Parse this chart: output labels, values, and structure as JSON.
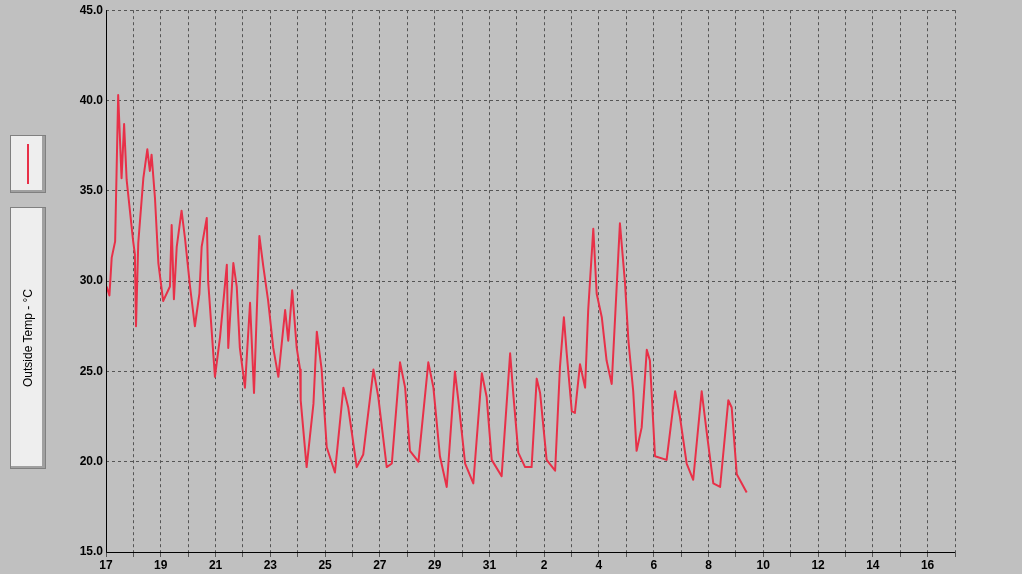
{
  "chart_data": {
    "type": "line",
    "x": [
      "--01-17T00:30",
      "--01-17T03:00",
      "--01-17T05:00",
      "--01-17T08:00",
      "--01-17T10:40",
      "--01-17T13:38",
      "--01-17T15:52",
      "--01-17T18:06",
      "--01-17T23:49",
      "--01-18T01:18",
      "--01-18T02:17",
      "--01-18T04:16",
      "--01-18T08:44",
      "--01-18T12:13",
      "--01-18T14:26",
      "--01-18T15:56",
      "--01-18T18:55",
      "--01-18T21:53",
      "--01-19T02:05",
      "--01-19T08:02",
      "--01-19T09:32",
      "--01-19T11:31",
      "--01-19T13:59",
      "--01-19T18:13",
      "--01-19T21:11",
      "--01-20T01:39",
      "--01-20T05:53",
      "--01-20T09:50",
      "--01-20T11:50",
      "--01-20T16:18",
      "--01-20T17:31",
      "--01-20T23:28",
      "--01-21T03:56",
      "--01-21T09:53",
      "--01-21T11:08",
      "--01-21T15:36",
      "--01-21T18:34",
      "--01-21T21:18",
      "--01-22T01:46",
      "--01-22T06:14",
      "--01-22T09:42",
      "--01-22T14:24",
      "--01-22T17:53",
      "--01-22T22:06",
      "--01-23T02:34",
      "--01-23T07:02",
      "--01-23T12:59",
      "--01-23T15:42",
      "--01-23T19:10",
      "--01-23T23:08",
      "--01-24T02:07",
      "--01-24T02:37",
      "--01-24T07:49",
      "--01-24T13:47",
      "--01-24T16:45",
      "--01-24T20:59",
      "--01-25T01:26",
      "--01-25T08:37",
      "--01-25T16:03",
      "--01-25T20:17",
      "--01-26T03:43",
      "--01-26T09:26",
      "--01-26T18:22",
      "--01-26T22:34",
      "--01-27T06:00",
      "--01-27T10:28",
      "--01-27T17:40",
      "--01-27T22:08",
      "--01-28T02:21",
      "--01-28T09:48",
      "--01-28T18:27",
      "--01-28T22:55",
      "--01-29T04:38",
      "--01-29T10:35",
      "--01-29T17:47",
      "--01-29T20:46",
      "--01-30T02:43",
      "--01-30T09:53",
      "--01-30T17:20",
      "--01-30T21:33",
      "--01-31T02:01",
      "--01-31T10:42",
      "--01-31T18:09",
      "--01-31T21:07",
      "--02-01T01:19",
      "--02-01T07:16",
      "--02-01T12:59",
      "--02-01T17:27",
      "--02-01T20:25",
      "--02-02T02:08",
      "--02-02T09:35",
      "--02-02T13:47",
      "--02-02T17:15",
      "--02-02T19:44",
      "--02-03T00:11",
      "--02-03T02:55",
      "--02-03T07:23",
      "--02-03T11:51",
      "--02-03T14:34",
      "--02-03T19:02",
      "--02-03T22:00",
      "--02-04T02:28",
      "--02-04T06:41",
      "--02-04T11:10",
      "--02-04T18:22",
      "--02-04T22:49",
      "--02-05T01:48",
      "--02-05T06:01",
      "--02-05T08:59",
      "--02-05T13:26",
      "--02-05T17:54",
      "--02-05T20:38",
      "--02-06T01:06",
      "--02-06T11:17",
      "--02-06T18:43",
      "--02-06T22:55",
      "--02-07T04:52",
      "--02-07T10:35",
      "--02-07T18:01",
      "--02-07T22:29",
      "--02-08T04:12",
      "--02-08T10:09",
      "--02-08T17:21",
      "--02-08T20:18",
      "--02-09T00:46",
      "--02-09T09:27"
    ],
    "series": [
      {
        "name": "Outside Temp - °C",
        "color": "#e83048",
        "values": [
          29.7,
          29.2,
          31.3,
          32.2,
          40.3,
          35.7,
          38.7,
          35.6,
          32.2,
          31.5,
          27.5,
          32.1,
          35.7,
          37.3,
          36.1,
          37.0,
          34.6,
          31.0,
          28.9,
          29.7,
          33.1,
          29.0,
          31.9,
          33.9,
          32.4,
          29.7,
          27.5,
          29.3,
          31.9,
          33.5,
          30.0,
          24.7,
          26.9,
          30.9,
          26.3,
          31.0,
          29.7,
          26.3,
          24.1,
          28.8,
          23.8,
          32.5,
          30.8,
          28.9,
          26.3,
          24.7,
          28.4,
          26.7,
          29.5,
          26.3,
          25.1,
          23.4,
          19.7,
          23.2,
          27.2,
          25.1,
          20.8,
          19.4,
          24.1,
          23.0,
          19.7,
          20.4,
          25.1,
          23.6,
          19.7,
          19.9,
          25.5,
          24.1,
          20.6,
          20.0,
          25.5,
          24.1,
          20.3,
          18.6,
          25.0,
          23.4,
          19.9,
          18.8,
          24.9,
          23.6,
          20.1,
          19.2,
          26.0,
          23.6,
          20.5,
          19.7,
          19.7,
          24.6,
          23.8,
          20.1,
          19.5,
          25.2,
          28.0,
          26.0,
          22.8,
          22.7,
          25.4,
          24.1,
          28.4,
          32.9,
          29.3,
          28.0,
          25.6,
          24.3,
          33.2,
          29.9,
          26.7,
          23.9,
          20.6,
          21.9,
          26.2,
          25.6,
          20.3,
          20.1,
          23.9,
          22.5,
          19.9,
          19.0,
          23.9,
          21.6,
          18.8,
          18.6,
          23.4,
          23.0,
          19.3,
          18.3
        ]
      }
    ],
    "xlim": [
      "--01-17",
      "--02-17"
    ],
    "xticks": [
      {
        "value": "--01-17",
        "label": "17"
      },
      {
        "value": "--01-18",
        "label": null
      },
      {
        "value": "--01-19",
        "label": "19"
      },
      {
        "value": "--01-20",
        "label": null
      },
      {
        "value": "--01-21",
        "label": "21"
      },
      {
        "value": "--01-22",
        "label": null
      },
      {
        "value": "--01-23",
        "label": "23"
      },
      {
        "value": "--01-24",
        "label": null
      },
      {
        "value": "--01-25",
        "label": "25"
      },
      {
        "value": "--01-26",
        "label": null
      },
      {
        "value": "--01-27",
        "label": "27"
      },
      {
        "value": "--01-28",
        "label": null
      },
      {
        "value": "--01-29",
        "label": "29"
      },
      {
        "value": "--01-30",
        "label": null
      },
      {
        "value": "--01-31",
        "label": "31"
      },
      {
        "value": "--02-01",
        "label": null
      },
      {
        "value": "--02-02",
        "label": "2"
      },
      {
        "value": "--02-03",
        "label": null
      },
      {
        "value": "--02-04",
        "label": "4"
      },
      {
        "value": "--02-05",
        "label": null
      },
      {
        "value": "--02-06",
        "label": "6"
      },
      {
        "value": "--02-07",
        "label": null
      },
      {
        "value": "--02-08",
        "label": "8"
      },
      {
        "value": "--02-09",
        "label": null
      },
      {
        "value": "--02-10",
        "label": "10"
      },
      {
        "value": "--02-11",
        "label": null
      },
      {
        "value": "--02-12",
        "label": "12"
      },
      {
        "value": "--02-13",
        "label": null
      },
      {
        "value": "--02-14",
        "label": "14"
      },
      {
        "value": "--02-15",
        "label": null
      },
      {
        "value": "--02-16",
        "label": "16"
      },
      {
        "value": "--02-17",
        "label": null
      }
    ],
    "ylim": [
      15,
      45
    ],
    "yticks": [
      {
        "value": 15,
        "label": "15.0"
      },
      {
        "value": 20,
        "label": "20.0"
      },
      {
        "value": 25,
        "label": "25.0"
      },
      {
        "value": 30,
        "label": "30.0"
      },
      {
        "value": 35,
        "label": "35.0"
      },
      {
        "value": 40,
        "label": "40.0"
      },
      {
        "value": 45,
        "label": "45.0"
      }
    ],
    "grid": true,
    "legend": "left"
  }
}
